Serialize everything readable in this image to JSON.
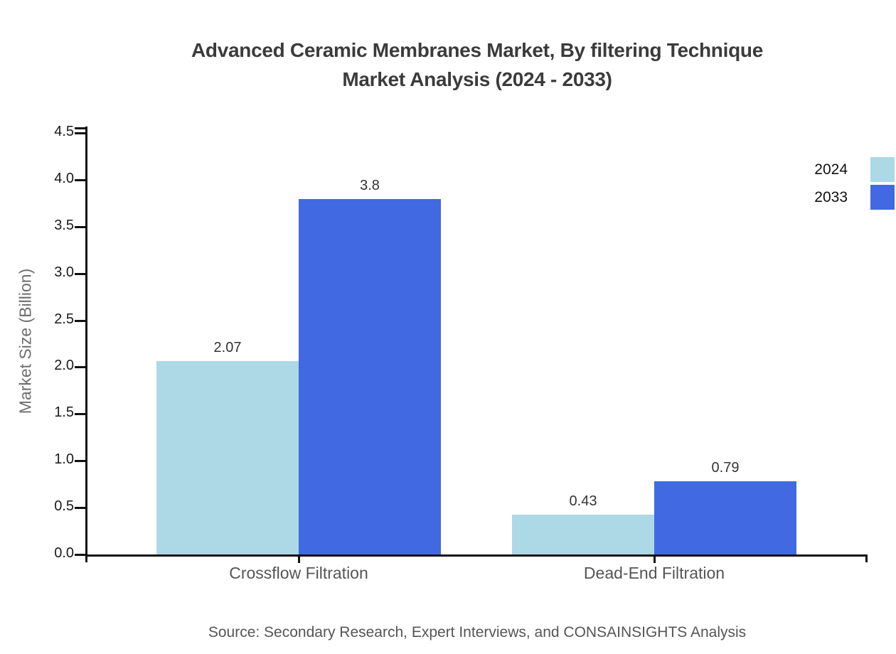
{
  "title": {
    "line1": "Advanced Ceramic Membranes Market, By filtering Technique",
    "line2": "Market Analysis (2024 - 2033)"
  },
  "chart_data": {
    "type": "bar",
    "categories": [
      "Crossflow Filtration",
      "Dead-End Filtration"
    ],
    "series": [
      {
        "name": "2024",
        "color": "#ADD8E6",
        "values": [
          2.07,
          0.43
        ],
        "labels": [
          "2.07",
          "0.43"
        ]
      },
      {
        "name": "2033",
        "color": "#4169E1",
        "values": [
          3.8,
          0.79
        ],
        "labels": [
          "3.8",
          "0.79"
        ]
      }
    ],
    "ylabel": "Market Size (Billion)",
    "xlabel": "",
    "ylim": [
      0,
      4.5
    ],
    "ytick_step": 0.5,
    "yticks": [
      "0.0",
      "0.5",
      "1.0",
      "1.5",
      "2.0",
      "2.5",
      "3.0",
      "3.5",
      "4.0",
      "4.5"
    ],
    "grid": false,
    "legend_position": "right"
  },
  "colors": {
    "series_2024": "#ADD8E6",
    "series_2033": "#4169E1",
    "axis": "#111111",
    "title_text": "#3b3b3b",
    "value_label_text": "#333333",
    "muted_text": "#555555"
  },
  "source": "Source: Secondary Research, Expert Interviews, and CONSAINSIGHTS Analysis"
}
